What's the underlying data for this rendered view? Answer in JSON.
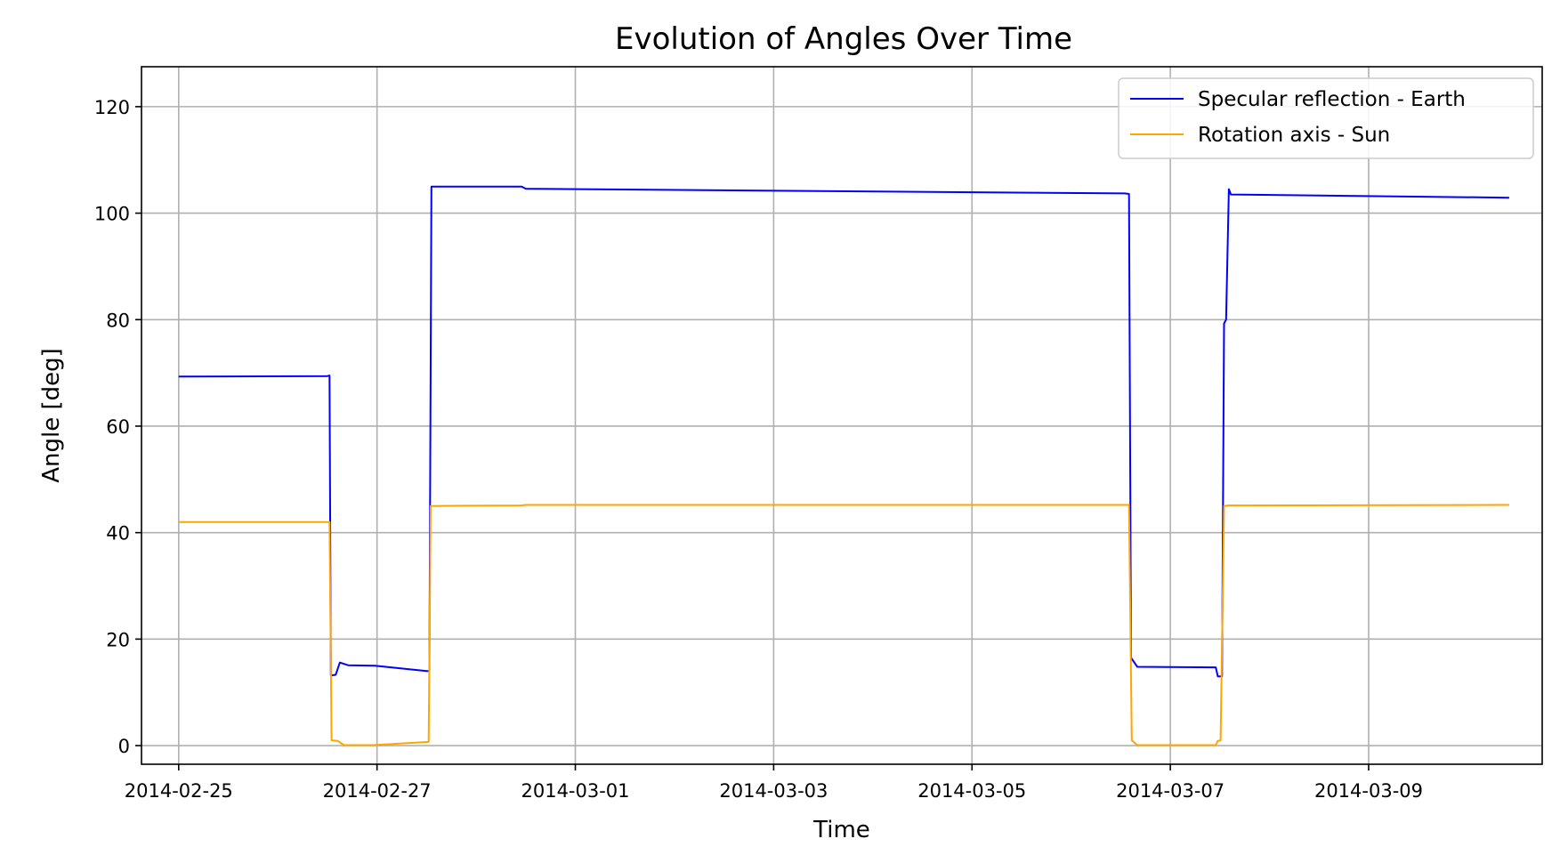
{
  "chart_data": {
    "type": "line",
    "title": "Evolution of Angles Over Time",
    "xlabel": "Time",
    "ylabel": "Angle [deg]",
    "x_range": [
      "2014-02-24T15:00",
      "2014-03-10T18:00"
    ],
    "ylim": [
      -3.5,
      127.5
    ],
    "x_ticks": [
      "2014-02-25",
      "2014-02-27",
      "2014-03-01",
      "2014-03-03",
      "2014-03-05",
      "2014-03-07",
      "2014-03-09"
    ],
    "y_ticks": [
      0,
      20,
      40,
      60,
      80,
      100,
      120
    ],
    "grid": true,
    "legend_position": "top-right",
    "series": [
      {
        "name": "Specular reflection - Earth",
        "color": "#0000ff",
        "points": [
          [
            "2014-02-25T00:00",
            69.3
          ],
          [
            "2014-02-26T12:00",
            69.4
          ],
          [
            "2014-02-26T12:30",
            69.5
          ],
          [
            "2014-02-26T12:50",
            13.2
          ],
          [
            "2014-02-26T14:00",
            13.3
          ],
          [
            "2014-02-26T15:00",
            15.6
          ],
          [
            "2014-02-26T17:00",
            15.1
          ],
          [
            "2014-02-26T23:30",
            15.0
          ],
          [
            "2014-02-27T12:00",
            14.0
          ],
          [
            "2014-02-27T12:40",
            14.0
          ],
          [
            "2014-02-27T13:10",
            105.0
          ],
          [
            "2014-02-28T11:00",
            105.0
          ],
          [
            "2014-02-28T12:00",
            104.6
          ],
          [
            "2014-03-06T13:00",
            103.7
          ],
          [
            "2014-03-06T14:00",
            103.6
          ],
          [
            "2014-03-06T14:30",
            16.5
          ],
          [
            "2014-03-06T16:00",
            14.8
          ],
          [
            "2014-03-07T11:00",
            14.7
          ],
          [
            "2014-03-07T11:30",
            13.0
          ],
          [
            "2014-03-07T12:30",
            13.0
          ],
          [
            "2014-03-07T13:00",
            79.3
          ],
          [
            "2014-03-07T13:30",
            80.0
          ],
          [
            "2014-03-07T14:10",
            104.5
          ],
          [
            "2014-03-07T14:40",
            103.5
          ],
          [
            "2014-03-10T10:00",
            102.9
          ]
        ]
      },
      {
        "name": "Rotation axis - Sun",
        "color": "#ffa500",
        "points": [
          [
            "2014-02-25T00:00",
            42.0
          ],
          [
            "2014-02-26T12:30",
            42.0
          ],
          [
            "2014-02-26T13:00",
            1.0
          ],
          [
            "2014-02-26T14:30",
            0.9
          ],
          [
            "2014-02-26T16:00",
            0.1
          ],
          [
            "2014-02-26T23:00",
            0.1
          ],
          [
            "2014-02-27T12:30",
            0.7
          ],
          [
            "2014-02-27T13:00",
            45.0
          ],
          [
            "2014-02-28T11:00",
            45.1
          ],
          [
            "2014-02-28T12:00",
            45.2
          ],
          [
            "2014-03-06T14:00",
            45.2
          ],
          [
            "2014-03-06T14:40",
            1.0
          ],
          [
            "2014-03-06T16:00",
            0.1
          ],
          [
            "2014-03-07T11:00",
            0.1
          ],
          [
            "2014-03-07T11:30",
            0.9
          ],
          [
            "2014-03-07T12:10",
            1.0
          ],
          [
            "2014-03-07T13:00",
            45.0
          ],
          [
            "2014-03-07T14:00",
            45.1
          ],
          [
            "2014-03-10T10:00",
            45.2
          ]
        ]
      }
    ]
  }
}
